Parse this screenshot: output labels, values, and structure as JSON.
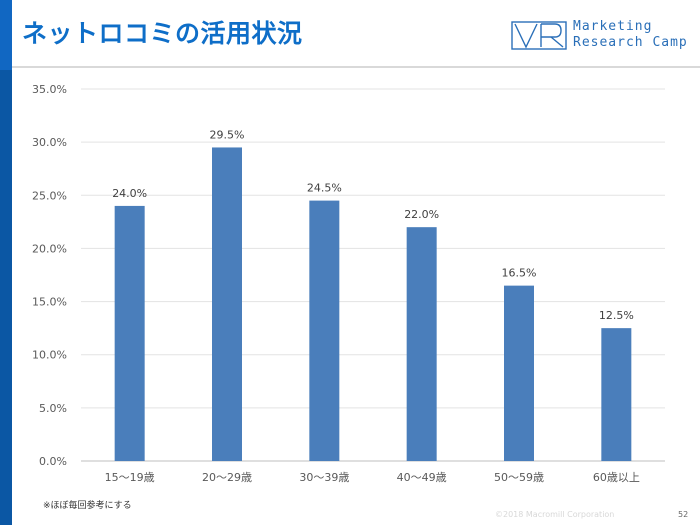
{
  "slide": {
    "title": "ネットロコミの活用状況",
    "logo_line1": "Marketing",
    "logo_line2": "Research Camp",
    "note": "※ほぼ毎回参考にする",
    "copyright": "©2018 Macromill Corporation",
    "page_number": "52",
    "accent_color": "#0e6ec8",
    "bar_color": "#4a7ebb"
  },
  "chart_data": {
    "type": "bar",
    "categories": [
      "15～19歳",
      "20～29歳",
      "30～39歳",
      "40～49歳",
      "50～59歳",
      "60歳以上"
    ],
    "values": [
      24.0,
      29.5,
      24.5,
      22.0,
      16.5,
      12.5
    ],
    "data_labels": [
      "24.0%",
      "29.5%",
      "24.5%",
      "22.0%",
      "16.5%",
      "12.5%"
    ],
    "y_ticks": [
      "0.0%",
      "5.0%",
      "10.0%",
      "15.0%",
      "20.0%",
      "25.0%",
      "30.0%",
      "35.0%"
    ],
    "ylim": [
      0,
      35
    ],
    "grid": true,
    "xlabel": "",
    "ylabel": "",
    "title": ""
  }
}
